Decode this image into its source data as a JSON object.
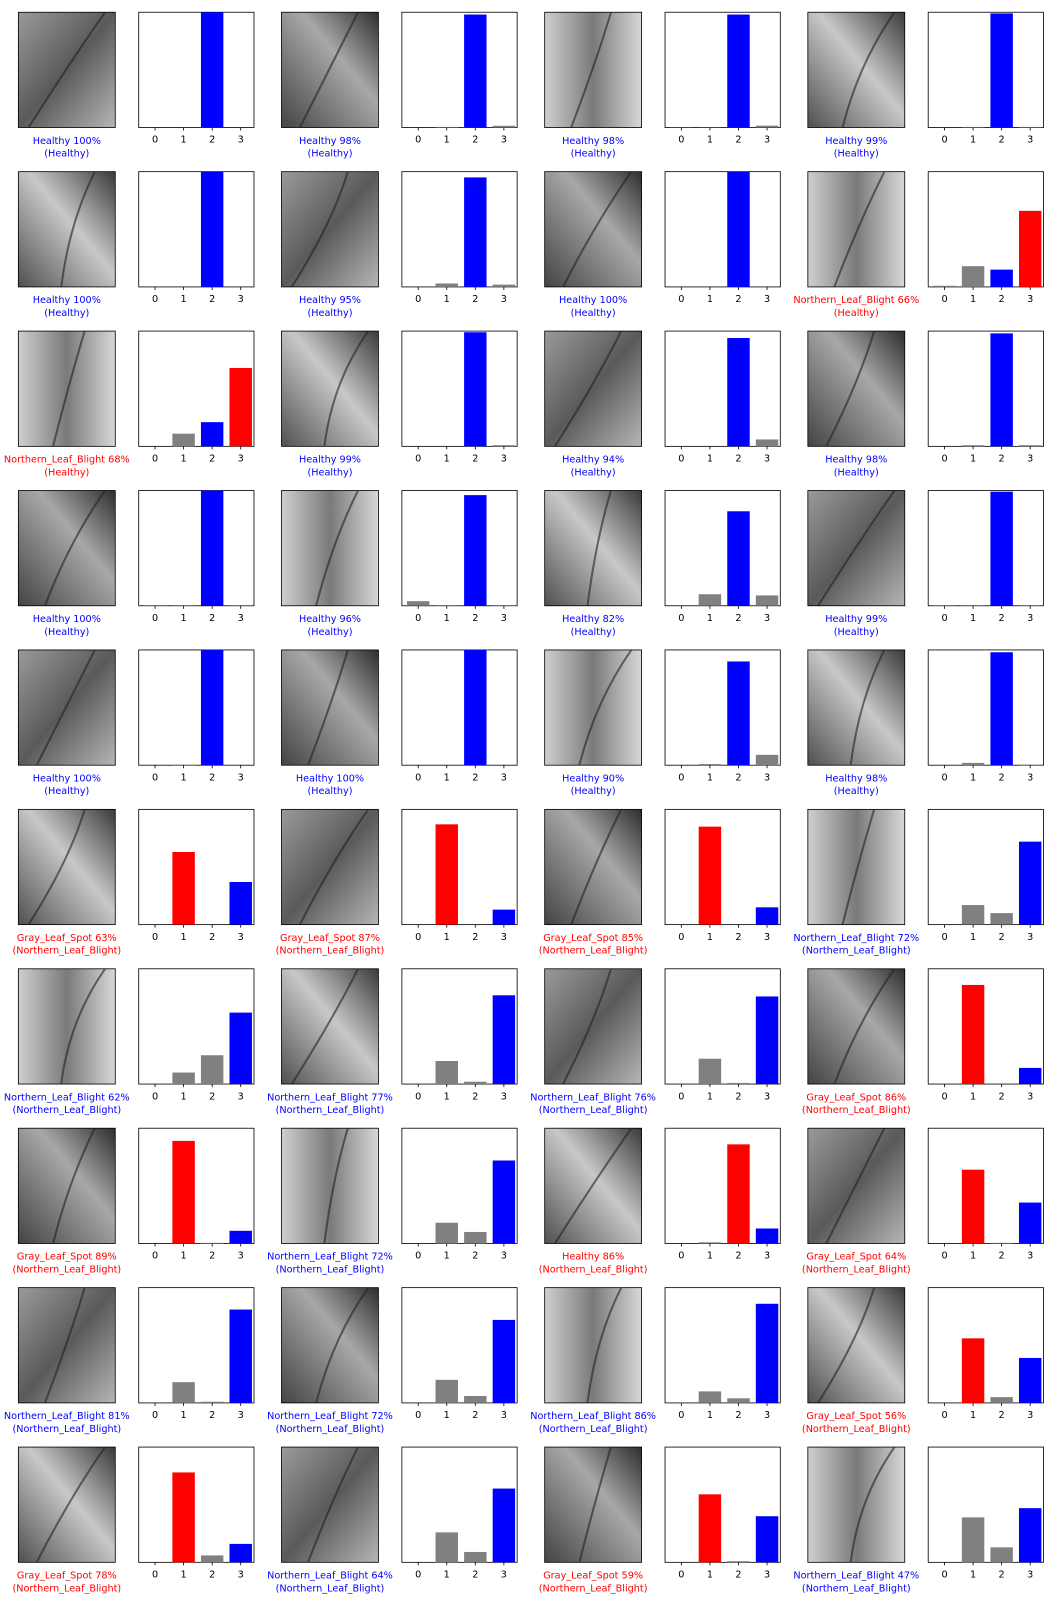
{
  "chart_data": [
    {
      "type": "bar",
      "caption": [
        "Healthy 100%",
        "(Healthy)"
      ],
      "caption_color": "blue",
      "categories": [
        "0",
        "1",
        "2",
        "3"
      ],
      "values": [
        0,
        0,
        1.0,
        0
      ],
      "colors": [
        "gray",
        "gray",
        "blue",
        "gray"
      ],
      "ylim": [
        0,
        1
      ]
    },
    {
      "type": "bar",
      "caption": [
        "Healthy 98%",
        "(Healthy)"
      ],
      "caption_color": "blue",
      "categories": [
        "0",
        "1",
        "2",
        "3"
      ],
      "values": [
        0,
        0.005,
        0.98,
        0.015
      ],
      "colors": [
        "gray",
        "gray",
        "blue",
        "gray"
      ],
      "ylim": [
        0,
        1
      ]
    },
    {
      "type": "bar",
      "caption": [
        "Healthy 98%",
        "(Healthy)"
      ],
      "caption_color": "blue",
      "categories": [
        "0",
        "1",
        "2",
        "3"
      ],
      "values": [
        0.002,
        0.002,
        0.98,
        0.016
      ],
      "colors": [
        "gray",
        "gray",
        "blue",
        "gray"
      ],
      "ylim": [
        0,
        1
      ]
    },
    {
      "type": "bar",
      "caption": [
        "Healthy 99%",
        "(Healthy)"
      ],
      "caption_color": "blue",
      "categories": [
        "0",
        "1",
        "2",
        "3"
      ],
      "values": [
        0,
        0.005,
        0.99,
        0.005
      ],
      "colors": [
        "gray",
        "gray",
        "blue",
        "gray"
      ],
      "ylim": [
        0,
        1
      ]
    },
    {
      "type": "bar",
      "caption": [
        "Healthy 100%",
        "(Healthy)"
      ],
      "caption_color": "blue",
      "categories": [
        "0",
        "1",
        "2",
        "3"
      ],
      "values": [
        0,
        0,
        1.0,
        0
      ],
      "colors": [
        "gray",
        "gray",
        "blue",
        "gray"
      ],
      "ylim": [
        0,
        1
      ]
    },
    {
      "type": "bar",
      "caption": [
        "Healthy 95%",
        "(Healthy)"
      ],
      "caption_color": "blue",
      "categories": [
        "0",
        "1",
        "2",
        "3"
      ],
      "values": [
        0,
        0.03,
        0.95,
        0.02
      ],
      "colors": [
        "gray",
        "gray",
        "blue",
        "gray"
      ],
      "ylim": [
        0,
        1
      ]
    },
    {
      "type": "bar",
      "caption": [
        "Healthy 100%",
        "(Healthy)"
      ],
      "caption_color": "blue",
      "categories": [
        "0",
        "1",
        "2",
        "3"
      ],
      "values": [
        0,
        0,
        1.0,
        0
      ],
      "colors": [
        "gray",
        "gray",
        "blue",
        "gray"
      ],
      "ylim": [
        0,
        1
      ]
    },
    {
      "type": "bar",
      "caption": [
        "Northern_Leaf_Blight 66%",
        "(Healthy)"
      ],
      "caption_color": "red",
      "categories": [
        "0",
        "1",
        "2",
        "3"
      ],
      "values": [
        0.01,
        0.18,
        0.15,
        0.66
      ],
      "colors": [
        "gray",
        "gray",
        "blue",
        "red"
      ],
      "ylim": [
        0,
        1
      ]
    },
    {
      "type": "bar",
      "caption": [
        "Northern_Leaf_Blight 68%",
        "(Healthy)"
      ],
      "caption_color": "red",
      "categories": [
        "0",
        "1",
        "2",
        "3"
      ],
      "values": [
        0,
        0.11,
        0.21,
        0.68
      ],
      "colors": [
        "gray",
        "gray",
        "blue",
        "red"
      ],
      "ylim": [
        0,
        1
      ]
    },
    {
      "type": "bar",
      "caption": [
        "Healthy 99%",
        "(Healthy)"
      ],
      "caption_color": "blue",
      "categories": [
        "0",
        "1",
        "2",
        "3"
      ],
      "values": [
        0,
        0,
        0.99,
        0.01
      ],
      "colors": [
        "gray",
        "gray",
        "blue",
        "gray"
      ],
      "ylim": [
        0,
        1
      ]
    },
    {
      "type": "bar",
      "caption": [
        "Healthy 94%",
        "(Healthy)"
      ],
      "caption_color": "blue",
      "categories": [
        "0",
        "1",
        "2",
        "3"
      ],
      "values": [
        0,
        0,
        0.94,
        0.06
      ],
      "colors": [
        "gray",
        "gray",
        "blue",
        "gray"
      ],
      "ylim": [
        0,
        1
      ]
    },
    {
      "type": "bar",
      "caption": [
        "Healthy 98%",
        "(Healthy)"
      ],
      "caption_color": "blue",
      "categories": [
        "0",
        "1",
        "2",
        "3"
      ],
      "values": [
        0,
        0.01,
        0.98,
        0.01
      ],
      "colors": [
        "gray",
        "gray",
        "blue",
        "gray"
      ],
      "ylim": [
        0,
        1
      ]
    },
    {
      "type": "bar",
      "caption": [
        "Healthy 100%",
        "(Healthy)"
      ],
      "caption_color": "blue",
      "categories": [
        "0",
        "1",
        "2",
        "3"
      ],
      "values": [
        0.005,
        0.005,
        1.0,
        0.005
      ],
      "colors": [
        "gray",
        "gray",
        "blue",
        "gray"
      ],
      "ylim": [
        0,
        1
      ]
    },
    {
      "type": "bar",
      "caption": [
        "Healthy 96%",
        "(Healthy)"
      ],
      "caption_color": "blue",
      "categories": [
        "0",
        "1",
        "2",
        "3"
      ],
      "values": [
        0.04,
        0.005,
        0.96,
        0.005
      ],
      "colors": [
        "gray",
        "gray",
        "blue",
        "gray"
      ],
      "ylim": [
        0,
        1
      ]
    },
    {
      "type": "bar",
      "caption": [
        "Healthy 82%",
        "(Healthy)"
      ],
      "caption_color": "blue",
      "categories": [
        "0",
        "1",
        "2",
        "3"
      ],
      "values": [
        0,
        0.1,
        0.82,
        0.09
      ],
      "colors": [
        "gray",
        "gray",
        "blue",
        "gray"
      ],
      "ylim": [
        0,
        1
      ]
    },
    {
      "type": "bar",
      "caption": [
        "Healthy 99%",
        "(Healthy)"
      ],
      "caption_color": "blue",
      "categories": [
        "0",
        "1",
        "2",
        "3"
      ],
      "values": [
        0.005,
        0.005,
        0.99,
        0.005
      ],
      "colors": [
        "gray",
        "gray",
        "blue",
        "gray"
      ],
      "ylim": [
        0,
        1
      ]
    },
    {
      "type": "bar",
      "caption": [
        "Healthy 100%",
        "(Healthy)"
      ],
      "caption_color": "blue",
      "categories": [
        "0",
        "1",
        "2",
        "3"
      ],
      "values": [
        0,
        0.005,
        1.0,
        0
      ],
      "colors": [
        "gray",
        "gray",
        "blue",
        "gray"
      ],
      "ylim": [
        0,
        1
      ]
    },
    {
      "type": "bar",
      "caption": [
        "Healthy 100%",
        "(Healthy)"
      ],
      "caption_color": "blue",
      "categories": [
        "0",
        "1",
        "2",
        "3"
      ],
      "values": [
        0,
        0,
        1.0,
        0
      ],
      "colors": [
        "gray",
        "gray",
        "blue",
        "gray"
      ],
      "ylim": [
        0,
        1
      ]
    },
    {
      "type": "bar",
      "caption": [
        "Healthy 90%",
        "(Healthy)"
      ],
      "caption_color": "blue",
      "categories": [
        "0",
        "1",
        "2",
        "3"
      ],
      "values": [
        0,
        0.01,
        0.9,
        0.09
      ],
      "colors": [
        "gray",
        "gray",
        "blue",
        "gray"
      ],
      "ylim": [
        0,
        1
      ]
    },
    {
      "type": "bar",
      "caption": [
        "Healthy 98%",
        "(Healthy)"
      ],
      "caption_color": "blue",
      "categories": [
        "0",
        "1",
        "2",
        "3"
      ],
      "values": [
        0,
        0.02,
        0.98,
        0.005
      ],
      "colors": [
        "gray",
        "gray",
        "blue",
        "gray"
      ],
      "ylim": [
        0,
        1
      ]
    },
    {
      "type": "bar",
      "caption": [
        "Gray_Leaf_Spot 63%",
        "(Northern_Leaf_Blight)"
      ],
      "caption_color": "red",
      "categories": [
        "0",
        "1",
        "2",
        "3"
      ],
      "values": [
        0,
        0.63,
        0,
        0.37
      ],
      "colors": [
        "gray",
        "red",
        "gray",
        "blue"
      ],
      "ylim": [
        0,
        1
      ]
    },
    {
      "type": "bar",
      "caption": [
        "Gray_Leaf_Spot 87%",
        "(Northern_Leaf_Blight)"
      ],
      "caption_color": "red",
      "categories": [
        "0",
        "1",
        "2",
        "3"
      ],
      "values": [
        0,
        0.87,
        0,
        0.13
      ],
      "colors": [
        "gray",
        "red",
        "gray",
        "blue"
      ],
      "ylim": [
        0,
        1
      ]
    },
    {
      "type": "bar",
      "caption": [
        "Gray_Leaf_Spot 85%",
        "(Northern_Leaf_Blight)"
      ],
      "caption_color": "red",
      "categories": [
        "0",
        "1",
        "2",
        "3"
      ],
      "values": [
        0,
        0.85,
        0,
        0.15
      ],
      "colors": [
        "gray",
        "red",
        "gray",
        "blue"
      ],
      "ylim": [
        0,
        1
      ]
    },
    {
      "type": "bar",
      "caption": [
        "Northern_Leaf_Blight 72%",
        "(Northern_Leaf_Blight)"
      ],
      "caption_color": "blue",
      "categories": [
        "0",
        "1",
        "2",
        "3"
      ],
      "values": [
        0,
        0.17,
        0.1,
        0.72
      ],
      "colors": [
        "gray",
        "gray",
        "gray",
        "blue"
      ],
      "ylim": [
        0,
        1
      ]
    },
    {
      "type": "bar",
      "caption": [
        "Northern_Leaf_Blight 62%",
        "(Northern_Leaf_Blight)"
      ],
      "caption_color": "blue",
      "categories": [
        "0",
        "1",
        "2",
        "3"
      ],
      "values": [
        0,
        0.1,
        0.25,
        0.62
      ],
      "colors": [
        "gray",
        "gray",
        "gray",
        "blue"
      ],
      "ylim": [
        0,
        1
      ]
    },
    {
      "type": "bar",
      "caption": [
        "Northern_Leaf_Blight 77%",
        "(Northern_Leaf_Blight)"
      ],
      "caption_color": "blue",
      "categories": [
        "0",
        "1",
        "2",
        "3"
      ],
      "values": [
        0,
        0.2,
        0.02,
        0.77
      ],
      "colors": [
        "gray",
        "gray",
        "gray",
        "blue"
      ],
      "ylim": [
        0,
        1
      ]
    },
    {
      "type": "bar",
      "caption": [
        "Northern_Leaf_Blight 76%",
        "(Northern_Leaf_Blight)"
      ],
      "caption_color": "blue",
      "categories": [
        "0",
        "1",
        "2",
        "3"
      ],
      "values": [
        0,
        0.22,
        0.01,
        0.76
      ],
      "colors": [
        "gray",
        "gray",
        "gray",
        "blue"
      ],
      "ylim": [
        0,
        1
      ]
    },
    {
      "type": "bar",
      "caption": [
        "Gray_Leaf_Spot 86%",
        "(Northern_Leaf_Blight)"
      ],
      "caption_color": "red",
      "categories": [
        "0",
        "1",
        "2",
        "3"
      ],
      "values": [
        0,
        0.86,
        0,
        0.14
      ],
      "colors": [
        "gray",
        "red",
        "gray",
        "blue"
      ],
      "ylim": [
        0,
        1
      ]
    },
    {
      "type": "bar",
      "caption": [
        "Gray_Leaf_Spot 89%",
        "(Northern_Leaf_Blight)"
      ],
      "caption_color": "red",
      "categories": [
        "0",
        "1",
        "2",
        "3"
      ],
      "values": [
        0,
        0.89,
        0.005,
        0.11
      ],
      "colors": [
        "gray",
        "red",
        "gray",
        "blue"
      ],
      "ylim": [
        0,
        1
      ]
    },
    {
      "type": "bar",
      "caption": [
        "Northern_Leaf_Blight 72%",
        "(Northern_Leaf_Blight)"
      ],
      "caption_color": "blue",
      "categories": [
        "0",
        "1",
        "2",
        "3"
      ],
      "values": [
        0,
        0.18,
        0.1,
        0.72
      ],
      "colors": [
        "gray",
        "gray",
        "gray",
        "blue"
      ],
      "ylim": [
        0,
        1
      ]
    },
    {
      "type": "bar",
      "caption": [
        "Healthy 86%",
        "(Northern_Leaf_Blight)"
      ],
      "caption_color": "red",
      "categories": [
        "0",
        "1",
        "2",
        "3"
      ],
      "values": [
        0,
        0.01,
        0.86,
        0.13
      ],
      "colors": [
        "gray",
        "gray",
        "red",
        "blue"
      ],
      "ylim": [
        0,
        1
      ]
    },
    {
      "type": "bar",
      "caption": [
        "Gray_Leaf_Spot 64%",
        "(Northern_Leaf_Blight)"
      ],
      "caption_color": "red",
      "categories": [
        "0",
        "1",
        "2",
        "3"
      ],
      "values": [
        0,
        0.64,
        0.005,
        0.355
      ],
      "colors": [
        "gray",
        "red",
        "gray",
        "blue"
      ],
      "ylim": [
        0,
        1
      ]
    },
    {
      "type": "bar",
      "caption": [
        "Northern_Leaf_Blight 81%",
        "(Northern_Leaf_Blight)"
      ],
      "caption_color": "blue",
      "categories": [
        "0",
        "1",
        "2",
        "3"
      ],
      "values": [
        0,
        0.18,
        0.01,
        0.81
      ],
      "colors": [
        "gray",
        "gray",
        "gray",
        "blue"
      ],
      "ylim": [
        0,
        1
      ]
    },
    {
      "type": "bar",
      "caption": [
        "Northern_Leaf_Blight 72%",
        "(Northern_Leaf_Blight)"
      ],
      "caption_color": "blue",
      "categories": [
        "0",
        "1",
        "2",
        "3"
      ],
      "values": [
        0,
        0.2,
        0.06,
        0.72
      ],
      "colors": [
        "gray",
        "gray",
        "gray",
        "blue"
      ],
      "ylim": [
        0,
        1
      ]
    },
    {
      "type": "bar",
      "caption": [
        "Northern_Leaf_Blight 86%",
        "(Northern_Leaf_Blight)"
      ],
      "caption_color": "blue",
      "categories": [
        "0",
        "1",
        "2",
        "3"
      ],
      "values": [
        0,
        0.1,
        0.04,
        0.86
      ],
      "colors": [
        "gray",
        "gray",
        "gray",
        "blue"
      ],
      "ylim": [
        0,
        1
      ]
    },
    {
      "type": "bar",
      "caption": [
        "Gray_Leaf_Spot 56%",
        "(Northern_Leaf_Blight)"
      ],
      "caption_color": "red",
      "categories": [
        "0",
        "1",
        "2",
        "3"
      ],
      "values": [
        0,
        0.56,
        0.05,
        0.39
      ],
      "colors": [
        "gray",
        "red",
        "gray",
        "blue"
      ],
      "ylim": [
        0,
        1
      ]
    },
    {
      "type": "bar",
      "caption": [
        "Gray_Leaf_Spot 78%",
        "(Northern_Leaf_Blight)"
      ],
      "caption_color": "red",
      "categories": [
        "0",
        "1",
        "2",
        "3"
      ],
      "values": [
        0,
        0.78,
        0.06,
        0.16
      ],
      "colors": [
        "gray",
        "red",
        "gray",
        "blue"
      ],
      "ylim": [
        0,
        1
      ]
    },
    {
      "type": "bar",
      "caption": [
        "Northern_Leaf_Blight 64%",
        "(Northern_Leaf_Blight)"
      ],
      "caption_color": "blue",
      "categories": [
        "0",
        "1",
        "2",
        "3"
      ],
      "values": [
        0,
        0.26,
        0.09,
        0.64
      ],
      "colors": [
        "gray",
        "gray",
        "gray",
        "blue"
      ],
      "ylim": [
        0,
        1
      ]
    },
    {
      "type": "bar",
      "caption": [
        "Gray_Leaf_Spot 59%",
        "(Northern_Leaf_Blight)"
      ],
      "caption_color": "red",
      "categories": [
        "0",
        "1",
        "2",
        "3"
      ],
      "values": [
        0,
        0.59,
        0.01,
        0.4
      ],
      "colors": [
        "gray",
        "red",
        "gray",
        "blue"
      ],
      "ylim": [
        0,
        1
      ]
    },
    {
      "type": "bar",
      "caption": [
        "Northern_Leaf_Blight 47%",
        "(Northern_Leaf_Blight)"
      ],
      "caption_color": "blue",
      "categories": [
        "0",
        "1",
        "2",
        "3"
      ],
      "values": [
        0,
        0.39,
        0.13,
        0.47
      ],
      "colors": [
        "gray",
        "gray",
        "gray",
        "blue"
      ],
      "ylim": [
        0,
        1
      ]
    }
  ]
}
